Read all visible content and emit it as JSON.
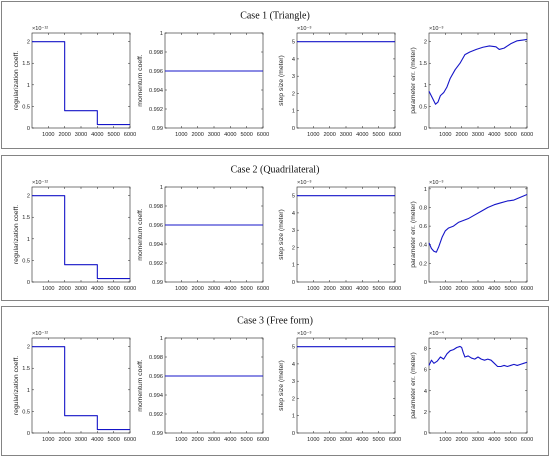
{
  "panels": [
    {
      "title": "Case 1 (Triangle)",
      "chart_data": [
        {
          "type": "line",
          "ylabel": "regularization coeff.",
          "exponent": "×10⁻¹²",
          "xlim": [
            0,
            6000
          ],
          "ylim": [
            0,
            2.2
          ],
          "xticks": [
            1000,
            2000,
            3000,
            4000,
            5000,
            6000
          ],
          "yticks": [
            0,
            0.5,
            1,
            1.5,
            2
          ],
          "ytick_labels": [
            "0",
            "0.5",
            "1",
            "1.5",
            "2"
          ],
          "series": [
            {
              "x": [
                0,
                2000,
                2000,
                4000,
                4000,
                6000
              ],
              "y": [
                2,
                2,
                0.4,
                0.4,
                0.08,
                0.08
              ]
            }
          ]
        },
        {
          "type": "line",
          "ylabel": "momentum coeff.",
          "exponent": "",
          "xlim": [
            0,
            6000
          ],
          "ylim": [
            0.99,
            1
          ],
          "xticks": [
            1000,
            2000,
            3000,
            4000,
            5000,
            6000
          ],
          "yticks": [
            0.99,
            0.992,
            0.994,
            0.996,
            0.998,
            1
          ],
          "ytick_labels": [
            "0.99",
            "0.992",
            "0.994",
            "0.996",
            "0.998",
            "1"
          ],
          "series": [
            {
              "x": [
                0,
                6000
              ],
              "y": [
                0.996,
                0.996
              ]
            }
          ]
        },
        {
          "type": "line",
          "ylabel": "step size (meter)",
          "exponent": "×10⁻³",
          "xlim": [
            0,
            6000
          ],
          "ylim": [
            0,
            5.5
          ],
          "xticks": [
            1000,
            2000,
            3000,
            4000,
            5000,
            6000
          ],
          "yticks": [
            0,
            1,
            2,
            3,
            4,
            5
          ],
          "ytick_labels": [
            "0",
            "1",
            "2",
            "3",
            "4",
            "5"
          ],
          "series": [
            {
              "x": [
                0,
                6000
              ],
              "y": [
                5,
                5
              ]
            }
          ]
        },
        {
          "type": "line",
          "ylabel": "parameter err. (meter)",
          "exponent": "×10⁻³",
          "xlim": [
            0,
            6000
          ],
          "ylim": [
            0,
            2.2
          ],
          "xticks": [
            1000,
            2000,
            3000,
            4000,
            5000,
            6000
          ],
          "yticks": [
            0,
            0.5,
            1,
            1.5,
            2
          ],
          "ytick_labels": [
            "0",
            "0.5",
            "1",
            "1.5",
            "2"
          ],
          "series": [
            {
              "x": [
                0,
                200,
                400,
                550,
                700,
                900,
                1100,
                1300,
                1600,
                1900,
                2200,
                2500,
                2900,
                3300,
                3700,
                4100,
                4300,
                4600,
                5000,
                5400,
                5800,
                6000
              ],
              "y": [
                0.85,
                0.7,
                0.55,
                0.6,
                0.75,
                0.82,
                0.95,
                1.15,
                1.35,
                1.5,
                1.7,
                1.76,
                1.82,
                1.87,
                1.9,
                1.88,
                1.82,
                1.85,
                1.95,
                2.02,
                2.04,
                2.05
              ]
            }
          ]
        }
      ]
    },
    {
      "title": "Case 2 (Quadrilateral)",
      "chart_data": [
        {
          "type": "line",
          "ylabel": "regularization coeff.",
          "exponent": "×10⁻¹²",
          "xlim": [
            0,
            6000
          ],
          "ylim": [
            0,
            2.2
          ],
          "xticks": [
            1000,
            2000,
            3000,
            4000,
            5000,
            6000
          ],
          "yticks": [
            0,
            0.5,
            1,
            1.5,
            2
          ],
          "ytick_labels": [
            "0",
            "0.5",
            "1",
            "1.5",
            "2"
          ],
          "series": [
            {
              "x": [
                0,
                2000,
                2000,
                4000,
                4000,
                6000
              ],
              "y": [
                2,
                2,
                0.4,
                0.4,
                0.08,
                0.08
              ]
            }
          ]
        },
        {
          "type": "line",
          "ylabel": "momentum coeff.",
          "exponent": "",
          "xlim": [
            0,
            6000
          ],
          "ylim": [
            0.99,
            1
          ],
          "xticks": [
            1000,
            2000,
            3000,
            4000,
            5000,
            6000
          ],
          "yticks": [
            0.99,
            0.992,
            0.994,
            0.996,
            0.998,
            1
          ],
          "ytick_labels": [
            "0.99",
            "0.992",
            "0.994",
            "0.996",
            "0.998",
            "1"
          ],
          "series": [
            {
              "x": [
                0,
                6000
              ],
              "y": [
                0.996,
                0.996
              ]
            }
          ]
        },
        {
          "type": "line",
          "ylabel": "step size (meter)",
          "exponent": "×10⁻³",
          "xlim": [
            0,
            6000
          ],
          "ylim": [
            0,
            5.5
          ],
          "xticks": [
            1000,
            2000,
            3000,
            4000,
            5000,
            6000
          ],
          "yticks": [
            0,
            1,
            2,
            3,
            4,
            5
          ],
          "ytick_labels": [
            "0",
            "1",
            "2",
            "3",
            "4",
            "5"
          ],
          "series": [
            {
              "x": [
                0,
                6000
              ],
              "y": [
                5,
                5
              ]
            }
          ]
        },
        {
          "type": "line",
          "ylabel": "parameter err. (meter)",
          "exponent": "×10⁻³",
          "xlim": [
            0,
            6000
          ],
          "ylim": [
            0,
            1.02
          ],
          "xticks": [
            1000,
            2000,
            3000,
            4000,
            5000,
            6000
          ],
          "yticks": [
            0,
            0.2,
            0.4,
            0.6,
            0.8,
            1
          ],
          "ytick_labels": [
            "0",
            "0.2",
            "0.4",
            "0.6",
            "0.8",
            "1"
          ],
          "series": [
            {
              "x": [
                0,
                150,
                300,
                450,
                600,
                800,
                1000,
                1200,
                1500,
                1800,
                2100,
                2400,
                2800,
                3200,
                3600,
                4000,
                4400,
                4800,
                5200,
                5600,
                6000
              ],
              "y": [
                0.42,
                0.36,
                0.33,
                0.32,
                0.38,
                0.48,
                0.55,
                0.58,
                0.6,
                0.64,
                0.66,
                0.68,
                0.72,
                0.76,
                0.8,
                0.83,
                0.85,
                0.87,
                0.88,
                0.91,
                0.94
              ]
            }
          ]
        }
      ]
    },
    {
      "title": "Case 3 (Free form)",
      "chart_data": [
        {
          "type": "line",
          "ylabel": "regularization coeff.",
          "exponent": "×10⁻¹²",
          "xlim": [
            0,
            6000
          ],
          "ylim": [
            0,
            2.2
          ],
          "xticks": [
            1000,
            2000,
            3000,
            4000,
            5000,
            6000
          ],
          "yticks": [
            0,
            0.5,
            1,
            1.5,
            2
          ],
          "ytick_labels": [
            "0",
            "0.5",
            "1",
            "1.5",
            "2"
          ],
          "series": [
            {
              "x": [
                0,
                2000,
                2000,
                4000,
                4000,
                6000
              ],
              "y": [
                2,
                2,
                0.4,
                0.4,
                0.08,
                0.08
              ]
            }
          ]
        },
        {
          "type": "line",
          "ylabel": "momentum coeff.",
          "exponent": "",
          "xlim": [
            0,
            6000
          ],
          "ylim": [
            0.99,
            1
          ],
          "xticks": [
            1000,
            2000,
            3000,
            4000,
            5000,
            6000
          ],
          "yticks": [
            0.99,
            0.992,
            0.994,
            0.996,
            0.998,
            1
          ],
          "ytick_labels": [
            "0.99",
            "0.992",
            "0.994",
            "0.996",
            "0.998",
            "1"
          ],
          "series": [
            {
              "x": [
                0,
                6000
              ],
              "y": [
                0.996,
                0.996
              ]
            }
          ]
        },
        {
          "type": "line",
          "ylabel": "step size (meter)",
          "exponent": "×10⁻³",
          "xlim": [
            0,
            6000
          ],
          "ylim": [
            0,
            5.5
          ],
          "xticks": [
            1000,
            2000,
            3000,
            4000,
            5000,
            6000
          ],
          "yticks": [
            0,
            1,
            2,
            3,
            4,
            5
          ],
          "ytick_labels": [
            "0",
            "1",
            "2",
            "3",
            "4",
            "5"
          ],
          "series": [
            {
              "x": [
                0,
                6000
              ],
              "y": [
                5,
                5
              ]
            }
          ]
        },
        {
          "type": "line",
          "ylabel": "parameter err. (meter)",
          "exponent": "×10⁻⁴",
          "xlim": [
            0,
            6000
          ],
          "ylim": [
            0,
            9
          ],
          "xticks": [
            1000,
            2000,
            3000,
            4000,
            5000,
            6000
          ],
          "yticks": [
            0,
            2,
            4,
            6,
            8
          ],
          "ytick_labels": [
            "0",
            "2",
            "4",
            "6",
            "8"
          ],
          "series": [
            {
              "x": [
                0,
                150,
                300,
                500,
                700,
                900,
                1100,
                1300,
                1500,
                1700,
                1900,
                2000,
                2100,
                2200,
                2400,
                2600,
                2800,
                3000,
                3200,
                3400,
                3600,
                3800,
                4000,
                4200,
                4400,
                4600,
                4800,
                5000,
                5200,
                5400,
                5600,
                5800,
                6000
              ],
              "y": [
                6.4,
                6.9,
                6.6,
                6.8,
                7.2,
                7.0,
                7.5,
                7.8,
                7.9,
                8.1,
                8.2,
                8.1,
                7.6,
                7.2,
                7.3,
                7.1,
                7.0,
                7.2,
                7.0,
                6.9,
                7.0,
                6.9,
                6.6,
                6.3,
                6.3,
                6.4,
                6.3,
                6.4,
                6.5,
                6.4,
                6.5,
                6.6,
                6.7
              ]
            }
          ]
        }
      ]
    }
  ]
}
